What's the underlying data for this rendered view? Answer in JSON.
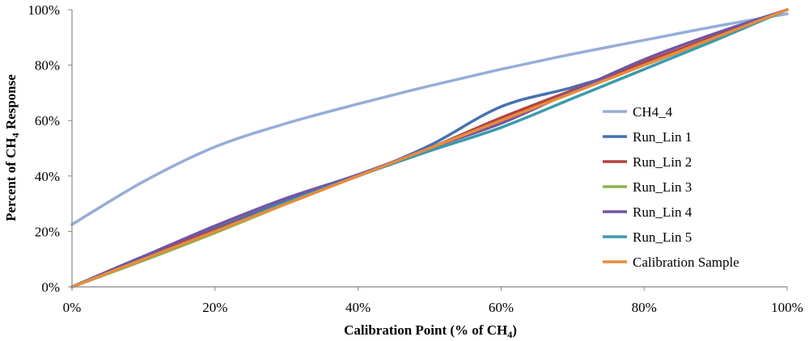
{
  "chart_data": {
    "type": "line",
    "xlabel": "Calibration Point (% of CH4)",
    "xlabel_parts": {
      "main": "Calibration Point (% of CH",
      "sub": "4",
      "after": ")"
    },
    "ylabel": "Percent of CH4 Response",
    "ylabel_parts": {
      "main": "Percent of CH",
      "sub": "4",
      "after": " Response"
    },
    "xlim": [
      0,
      100
    ],
    "ylim": [
      0,
      100
    ],
    "x_ticks": [
      "0%",
      "20%",
      "40%",
      "60%",
      "80%",
      "100%"
    ],
    "y_ticks": [
      "0%",
      "20%",
      "40%",
      "60%",
      "80%",
      "100%"
    ],
    "grid": false,
    "legend_position": "right",
    "series": [
      {
        "name": "CH4_4",
        "color": "#95AED8",
        "points": [
          [
            0,
            22.5
          ],
          [
            10,
            38
          ],
          [
            20,
            50.5
          ],
          [
            30,
            59
          ],
          [
            40,
            66
          ],
          [
            50,
            72.5
          ],
          [
            60,
            78.5
          ],
          [
            70,
            84
          ],
          [
            80,
            89
          ],
          [
            90,
            94
          ],
          [
            100,
            98.5
          ]
        ]
      },
      {
        "name": "Run_Lin 1",
        "color": "#4670B0",
        "points": [
          [
            0,
            0
          ],
          [
            10,
            11
          ],
          [
            20,
            21
          ],
          [
            30,
            31
          ],
          [
            40,
            40
          ],
          [
            50,
            51
          ],
          [
            60,
            65
          ],
          [
            70,
            72
          ],
          [
            80,
            80
          ],
          [
            90,
            90
          ],
          [
            100,
            100
          ]
        ]
      },
      {
        "name": "Run_Lin 2",
        "color": "#B3443F",
        "points": [
          [
            0,
            0
          ],
          [
            10,
            10.5
          ],
          [
            20,
            20.5
          ],
          [
            30,
            30.5
          ],
          [
            40,
            40
          ],
          [
            50,
            50
          ],
          [
            60,
            61
          ],
          [
            70,
            71
          ],
          [
            80,
            81
          ],
          [
            90,
            90.5
          ],
          [
            100,
            100
          ]
        ]
      },
      {
        "name": "Run_Lin 3",
        "color": "#8FB24B",
        "points": [
          [
            0,
            0
          ],
          [
            10,
            9.5
          ],
          [
            20,
            19.5
          ],
          [
            30,
            30
          ],
          [
            40,
            40
          ],
          [
            50,
            50
          ],
          [
            60,
            60
          ],
          [
            70,
            70
          ],
          [
            80,
            80
          ],
          [
            90,
            90
          ],
          [
            100,
            100
          ]
        ]
      },
      {
        "name": "Run_Lin 4",
        "color": "#7454A2",
        "points": [
          [
            0,
            0
          ],
          [
            10,
            11
          ],
          [
            20,
            22
          ],
          [
            30,
            32
          ],
          [
            40,
            40.5
          ],
          [
            50,
            50
          ],
          [
            60,
            59
          ],
          [
            70,
            70.5
          ],
          [
            80,
            82
          ],
          [
            90,
            91.5
          ],
          [
            100,
            100
          ]
        ]
      },
      {
        "name": "Run_Lin 5",
        "color": "#3A9AAD",
        "points": [
          [
            0,
            0
          ],
          [
            10,
            10
          ],
          [
            20,
            20
          ],
          [
            30,
            30.5
          ],
          [
            40,
            40
          ],
          [
            50,
            49
          ],
          [
            60,
            57.5
          ],
          [
            70,
            68
          ],
          [
            80,
            78.5
          ],
          [
            90,
            89
          ],
          [
            100,
            100
          ]
        ]
      },
      {
        "name": "Calibration Sample",
        "color": "#E88C3C",
        "points": [
          [
            0,
            0
          ],
          [
            10,
            10
          ],
          [
            20,
            20
          ],
          [
            30,
            30
          ],
          [
            40,
            40
          ],
          [
            50,
            50
          ],
          [
            60,
            60
          ],
          [
            70,
            70
          ],
          [
            80,
            80
          ],
          [
            90,
            90
          ],
          [
            100,
            100
          ]
        ]
      }
    ]
  }
}
